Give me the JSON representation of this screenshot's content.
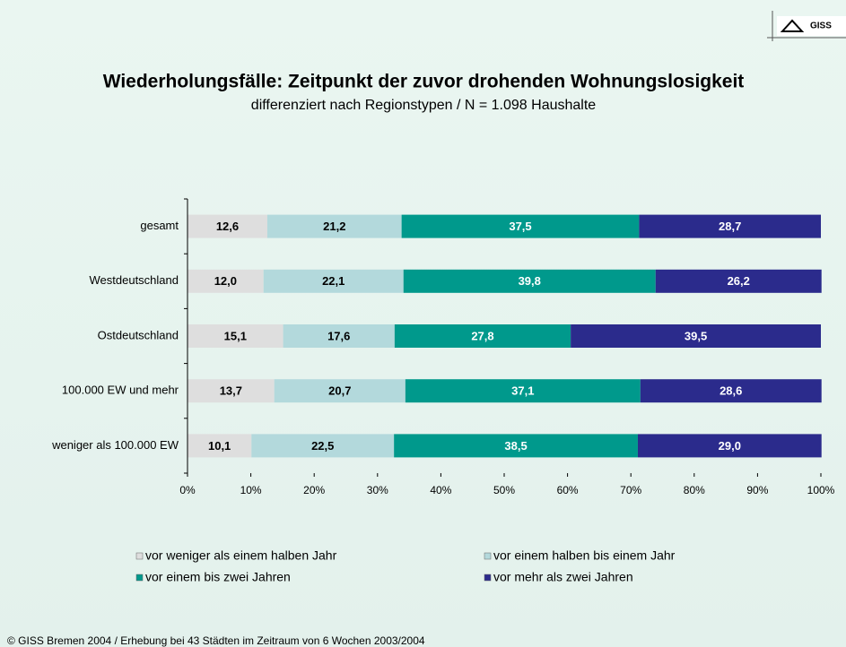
{
  "chart_data": {
    "type": "stacked_hbar",
    "title": "Wiederholungsfälle: Zeitpunkt der zuvor drohenden Wohnungslosigkeit",
    "subtitle": "differenziert nach Regionstypen / N = 1.098 Haushalte",
    "logo": "GISS",
    "footer": "© GISS Bremen 2004 / Erhebung bei 43 Städten im Zeitraum von 6 Wochen 2003/2004",
    "categories": [
      "gesamt",
      "Westdeutschland",
      "Ostdeutschland",
      "100.000 EW und mehr",
      "weniger als 100.000 EW"
    ],
    "series": [
      {
        "name": "vor weniger als einem halben Jahr",
        "color": "#dedede",
        "values": [
          12.6,
          12.0,
          15.1,
          13.7,
          10.1
        ],
        "value_labels": [
          "12,6",
          "12,0",
          "15,1",
          "13,7",
          "10,1"
        ]
      },
      {
        "name": "vor einem halben bis einem Jahr",
        "color": "#b3d9dc",
        "values": [
          21.2,
          22.1,
          17.6,
          20.7,
          22.5
        ],
        "value_labels": [
          "21,2",
          "22,1",
          "17,6",
          "20,7",
          "22,5"
        ]
      },
      {
        "name": "vor einem bis zwei Jahren",
        "color": "#00998c",
        "values": [
          37.5,
          39.8,
          27.8,
          37.1,
          38.5
        ],
        "value_labels": [
          "37,5",
          "39,8",
          "27,8",
          "37,1",
          "38,5"
        ]
      },
      {
        "name": "vor mehr als zwei Jahren",
        "color": "#2b2b8c",
        "values": [
          28.7,
          26.2,
          39.5,
          28.6,
          29.0
        ],
        "value_labels": [
          "28,7",
          "26,2",
          "39,5",
          "28,6",
          "29,0"
        ]
      }
    ],
    "xlim": [
      0,
      100
    ],
    "xticks": [
      {
        "value": 0,
        "label": "0%"
      },
      {
        "value": 10,
        "label": "10%"
      },
      {
        "value": 20,
        "label": "20%"
      },
      {
        "value": 30,
        "label": "30%"
      },
      {
        "value": 40,
        "label": "40%"
      },
      {
        "value": 50,
        "label": "50%"
      },
      {
        "value": 60,
        "label": "60%"
      },
      {
        "value": 70,
        "label": "70%"
      },
      {
        "value": 80,
        "label": "80%"
      },
      {
        "value": 90,
        "label": "90%"
      },
      {
        "value": 100,
        "label": "100%"
      }
    ]
  }
}
